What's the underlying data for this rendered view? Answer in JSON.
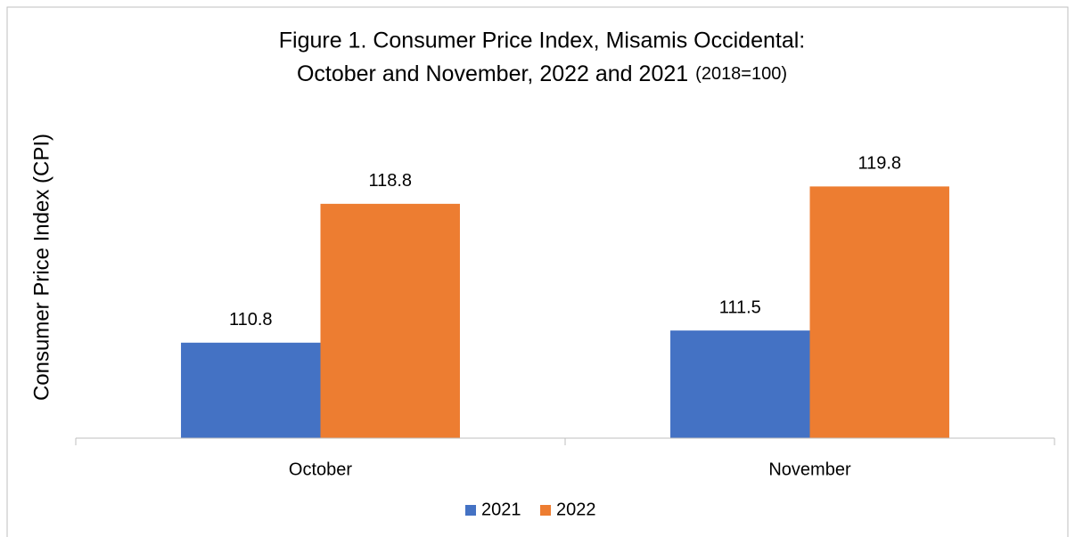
{
  "chart_data": {
    "type": "bar",
    "title": [
      "Figure 1. Consumer Price Index, Misamis Occidental:",
      "October and November, 2022 and 2021"
    ],
    "title_note": "(2018=100)",
    "ylabel": "Consumer Price  Index (CPI)",
    "categories": [
      "October",
      "November"
    ],
    "series": [
      {
        "name": "2021",
        "color": "#4472c4",
        "values": [
          110.8,
          111.5
        ]
      },
      {
        "name": "2022",
        "color": "#ed7d31",
        "values": [
          118.8,
          119.8
        ]
      }
    ],
    "ylim": [
      105.3,
      123
    ],
    "legend": "bottom"
  }
}
